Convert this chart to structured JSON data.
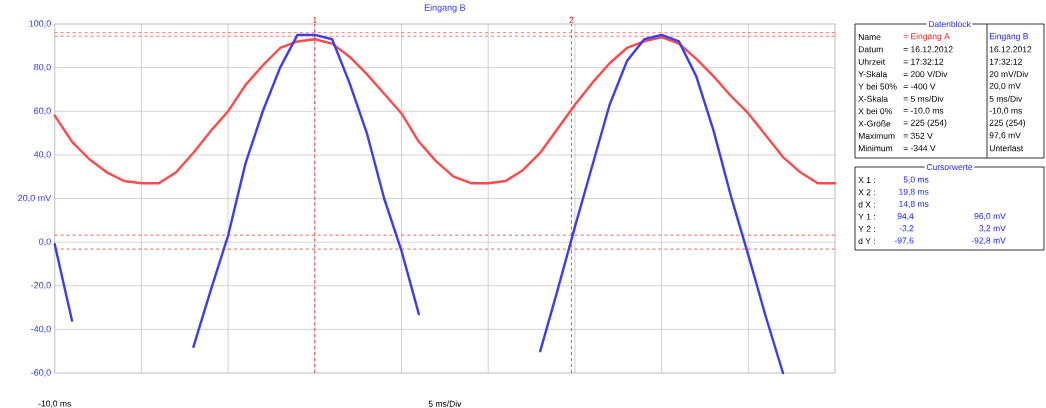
{
  "chart_data": [
    {
      "type": "line",
      "title": "Eingang B",
      "categories": [
        null,
        null,
        null,
        null,
        null,
        null,
        null,
        null,
        null,
        null,
        null,
        null,
        null,
        null,
        null,
        null,
        null,
        null,
        null,
        null,
        null,
        null,
        null,
        null,
        null,
        null,
        null,
        null,
        null,
        null,
        null,
        null,
        null,
        null,
        null,
        null,
        null,
        null,
        null,
        null,
        null,
        null,
        null,
        null,
        null,
        null
      ],
      "ylim": [
        -60,
        100
      ],
      "yticks": [
        {
          "value": -60,
          "label": "-60,0"
        },
        {
          "value": -40,
          "label": "-40,0"
        },
        {
          "value": -20,
          "label": "-20,0"
        },
        {
          "value": 0,
          "label": "0,0"
        },
        {
          "value": 20,
          "label": "20,0 mV"
        },
        {
          "value": 40,
          "label": "40,0"
        },
        {
          "value": 60,
          "label": "60,0"
        },
        {
          "value": 80,
          "label": "80,0"
        },
        {
          "value": 100,
          "label": "100,0"
        }
      ],
      "grid": true,
      "marker": "none",
      "series": [
        {
          "color": "#ff4a4a",
          "values": [
            58,
            46,
            38,
            32,
            28,
            27,
            27,
            32,
            41,
            51,
            60,
            72,
            81,
            89,
            92,
            93,
            91,
            85,
            77,
            68,
            59,
            46,
            37,
            30,
            27,
            27,
            28,
            33,
            41,
            52,
            63,
            73,
            82,
            89,
            92,
            94,
            91,
            84,
            76,
            67,
            59,
            49,
            39,
            32,
            27,
            27
          ]
        },
        {
          "color": "#3c3cf0",
          "values": [
            -1,
            -36,
            null,
            null,
            null,
            null,
            null,
            null,
            -48,
            -22,
            3,
            36,
            60,
            80,
            95,
            95,
            93,
            73,
            50,
            20,
            -4,
            -33,
            null,
            null,
            null,
            null,
            null,
            null,
            -50,
            -22,
            7,
            35,
            63,
            83,
            93,
            95,
            92,
            76,
            51,
            21,
            -6,
            -34,
            -60,
            null,
            null,
            null
          ]
        }
      ],
      "ref_lines": [
        {
          "axis": "y",
          "value": 96.0,
          "color": "#ff3030",
          "line_style": "dashed"
        },
        {
          "axis": "y",
          "value": 94.4,
          "color": "#ff3030",
          "line_style": "dashed"
        },
        {
          "axis": "y",
          "value": 3.2,
          "color": "#e02020",
          "line_style": "dashed"
        },
        {
          "axis": "y",
          "value": -3.2,
          "color": "#e02020",
          "line_style": "dashed"
        }
      ],
      "annotations": [
        "1",
        "2",
        "-10,0 ms",
        "5 ms/Div"
      ]
    },
    {
      "type": "other",
      "title": "Datenblock",
      "annotations": [
        "Name",
        "= Eingang A",
        "Eingang B",
        "Datum",
        "= 16.12.2012",
        "16.12.2012",
        "Uhrzeit",
        "= 17:32:12",
        "17:32:12",
        "Y-Skala",
        "= 200 V/Div",
        "20 mV/Div",
        "Y bei 50%",
        "= -400 V",
        "20,0 mV",
        "X-Skala",
        "= 5 ms/Div",
        "5 ms/Div",
        "X bei 0%",
        "= -10,0 ms",
        "-10,0 ms",
        "X-Größe",
        "= 225 (254)",
        "225 (254)",
        "Maximum",
        "= 352 V",
        "97,6 mV",
        "Minimum",
        "= -344 V",
        "Unterlast"
      ]
    },
    {
      "type": "other",
      "title": "Cursorwerte",
      "annotations": [
        "X 1 :",
        "5,0 ms",
        "X 2 :",
        "19,8 ms",
        "d X :",
        "14,8 ms",
        "Y 1 :",
        "94,4",
        "96,0 mV",
        "Y 2 :",
        "-3,2",
        "3,2 mV",
        "d Y :",
        "-97,6",
        "-92,8 mV"
      ]
    }
  ]
}
